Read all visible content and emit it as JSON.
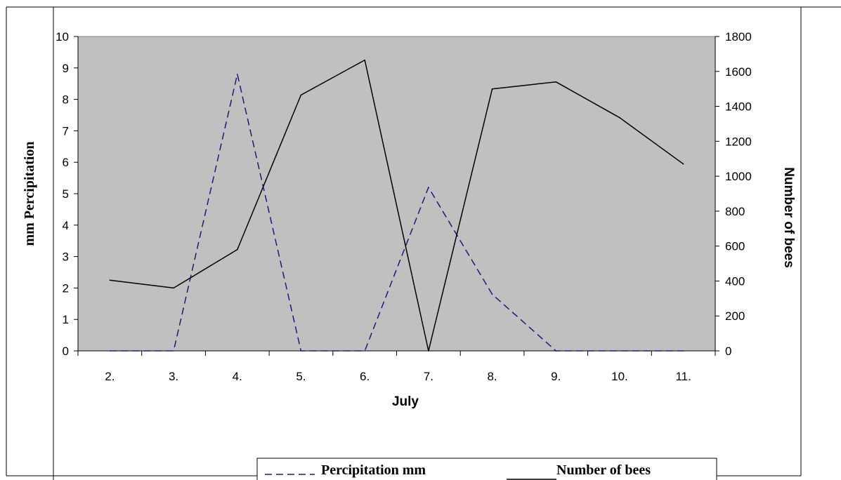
{
  "chart_data": {
    "type": "line",
    "categories": [
      "2.",
      "3.",
      "4.",
      "5.",
      "6.",
      "7.",
      "8.",
      "9.",
      "10.",
      "11."
    ],
    "xlabel": "July",
    "ylabel_left": "mm Percipitation",
    "ylabel_right": "Number of bees",
    "ylim_left": [
      0,
      10
    ],
    "ylim_right": [
      0,
      1800
    ],
    "yticks_left": [
      0,
      1,
      2,
      3,
      4,
      5,
      6,
      7,
      8,
      9,
      10
    ],
    "yticks_right": [
      0,
      200,
      400,
      600,
      800,
      1000,
      1200,
      1400,
      1600,
      1800
    ],
    "series": [
      {
        "name": "Percipitation mm",
        "axis": "left",
        "style": "dashed",
        "color": "#1a1a80",
        "values": [
          0,
          0,
          8.8,
          0,
          0,
          5.2,
          1.8,
          0,
          0,
          0
        ]
      },
      {
        "name": "Number of bees",
        "axis": "right",
        "style": "solid",
        "color": "#000000",
        "values": [
          405,
          360,
          580,
          1465,
          1665,
          0,
          1500,
          1540,
          1335,
          1070
        ]
      }
    ],
    "plot_background": "#c0c0c0",
    "grid": false,
    "legend_position": "bottom"
  }
}
